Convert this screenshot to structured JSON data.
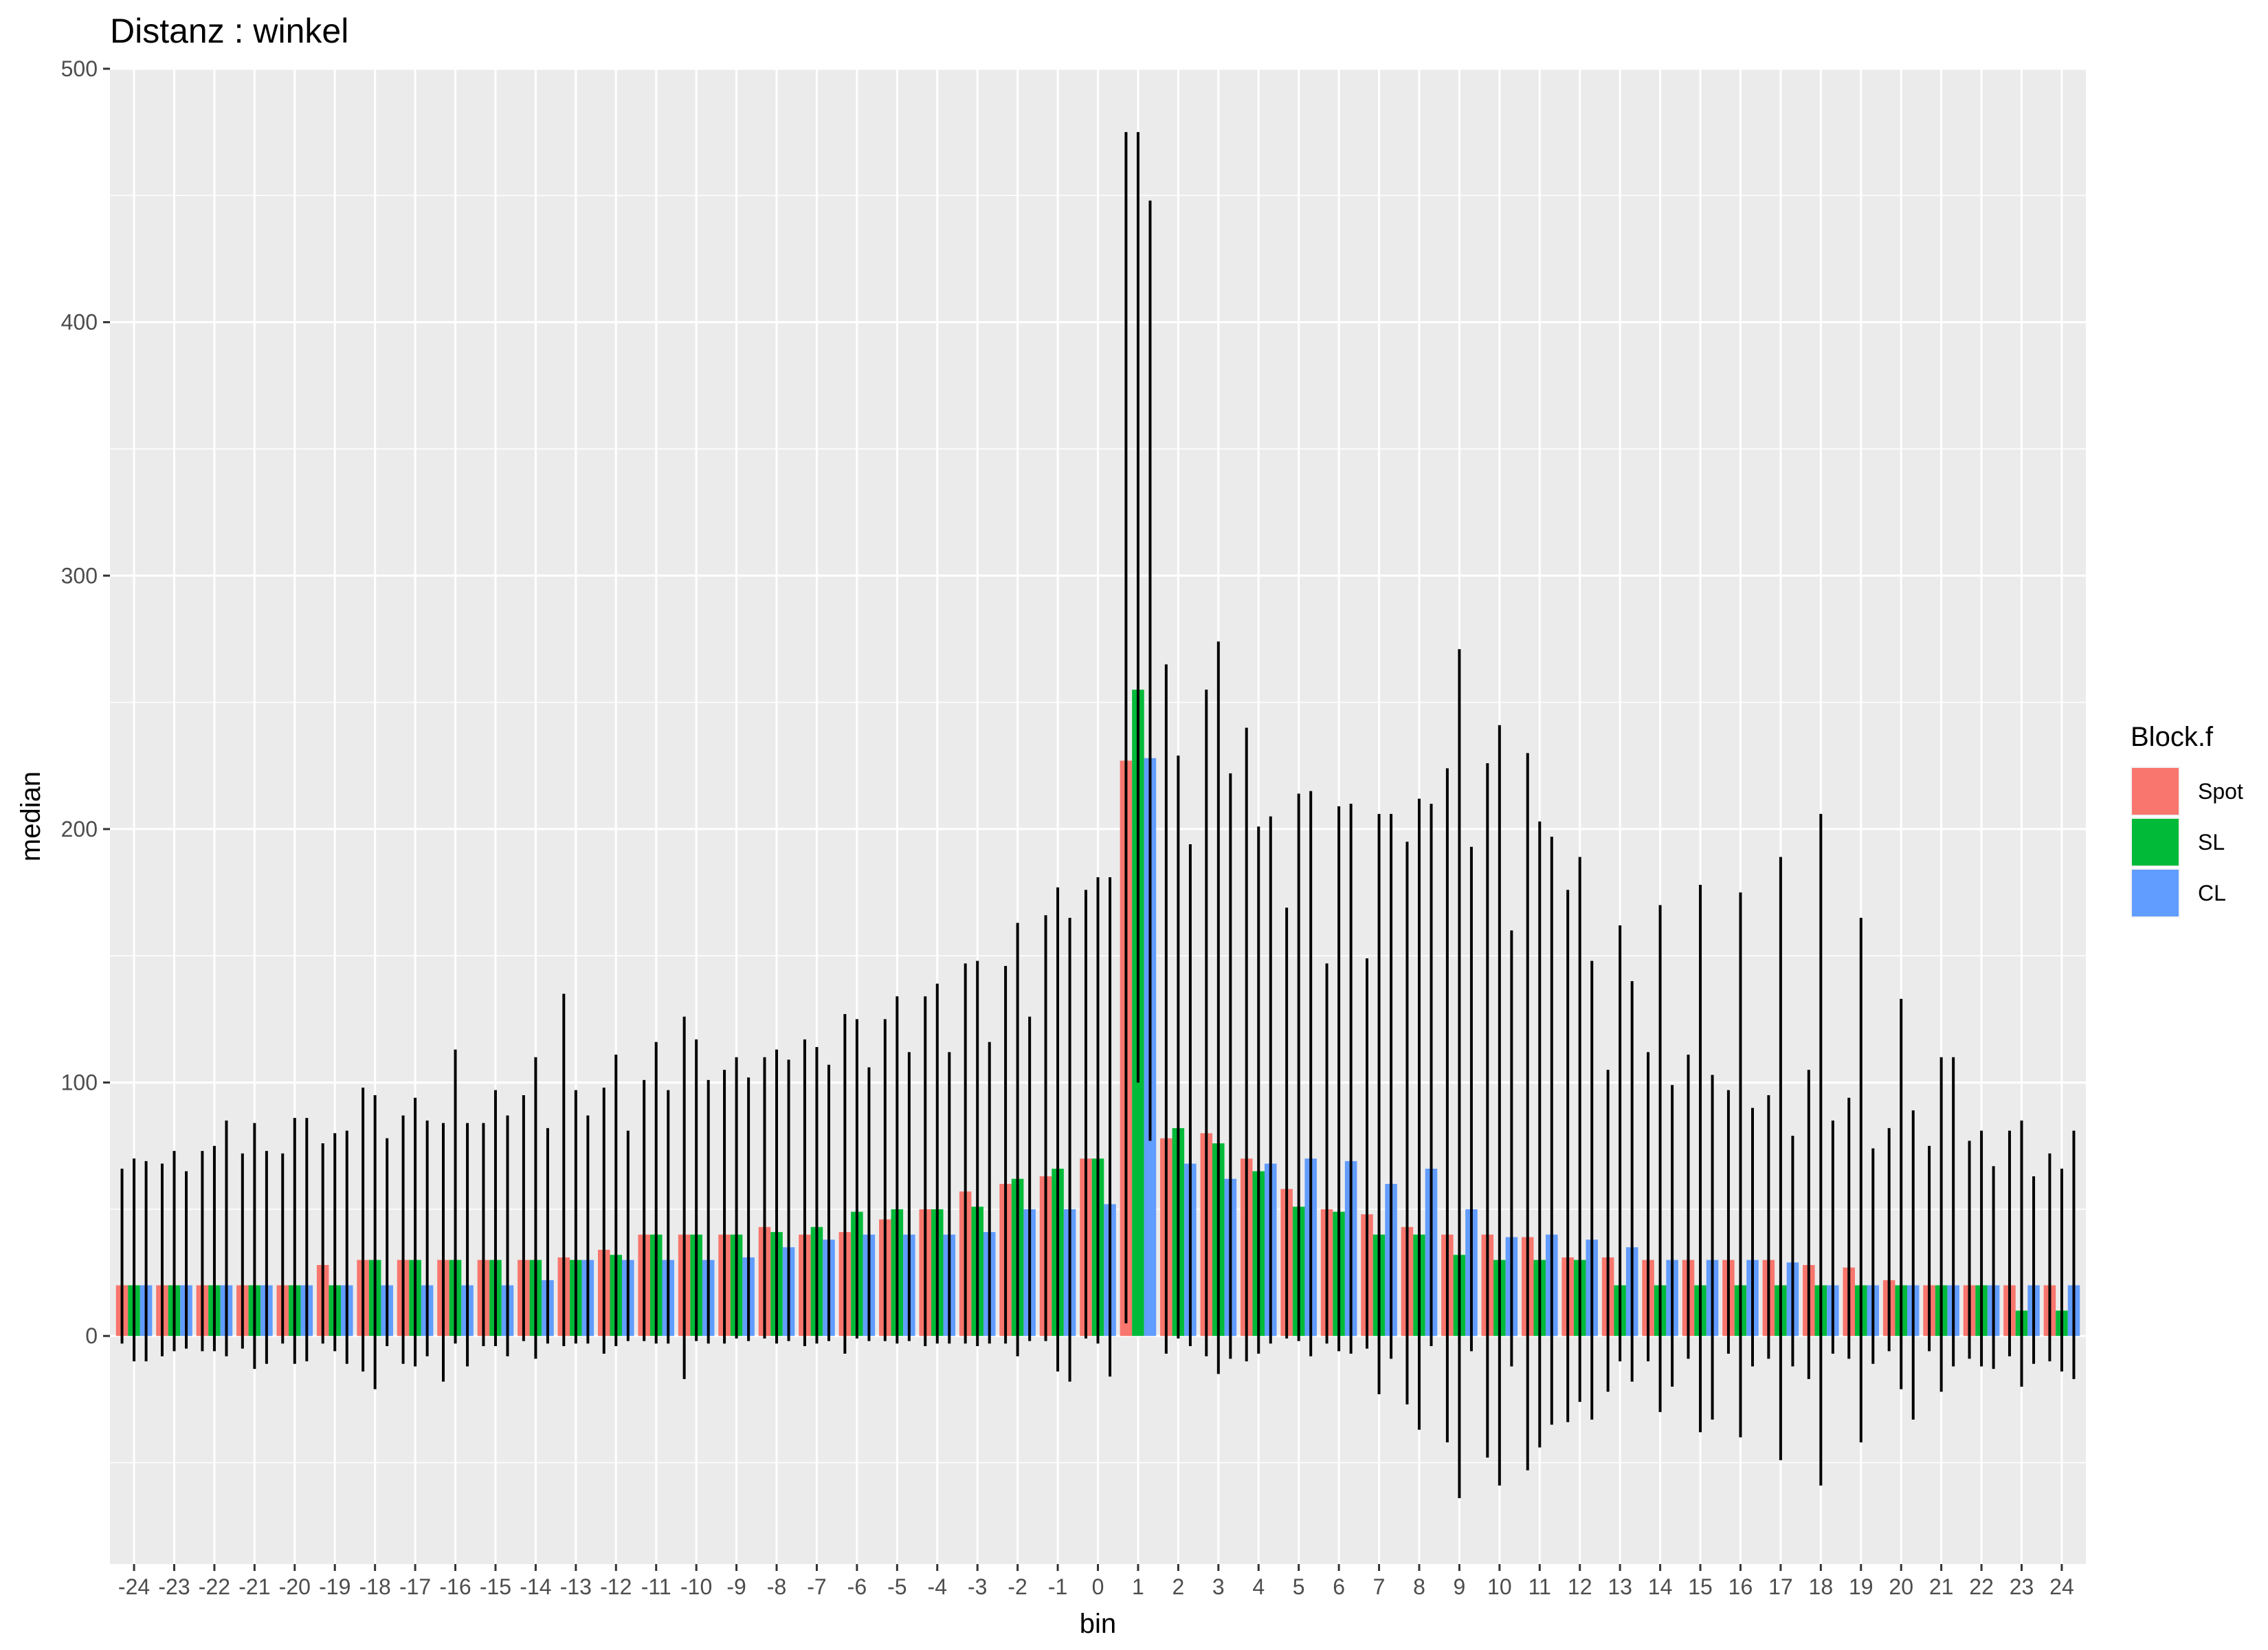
{
  "chart_data": {
    "type": "bar",
    "title": "Distanz : winkel",
    "xlabel": "bin",
    "ylabel": "median",
    "ylim": [
      -90,
      500
    ],
    "y_ticks": [
      0,
      100,
      200,
      300,
      400,
      500
    ],
    "grid": true,
    "legend": {
      "title": "Block.f",
      "position": "right"
    },
    "categories": [
      "-24",
      "-23",
      "-22",
      "-21",
      "-20",
      "-19",
      "-18",
      "-17",
      "-16",
      "-15",
      "-14",
      "-13",
      "-12",
      "-11",
      "-10",
      "-9",
      "-8",
      "-7",
      "-6",
      "-5",
      "-4",
      "-3",
      "-2",
      "-1",
      "0",
      "1",
      "2",
      "3",
      "4",
      "5",
      "6",
      "7",
      "8",
      "9",
      "10",
      "11",
      "12",
      "13",
      "14",
      "15",
      "16",
      "17",
      "18",
      "19",
      "20",
      "21",
      "22",
      "23",
      "24"
    ],
    "series": [
      {
        "name": "Spot",
        "color": "#F8766D",
        "values": [
          20,
          20,
          20,
          20,
          20,
          28,
          30,
          30,
          30,
          30,
          30,
          31,
          34,
          40,
          40,
          40,
          43,
          40,
          41,
          46,
          50,
          57,
          60,
          63,
          70,
          227,
          78,
          80,
          70,
          58,
          50,
          48,
          43,
          40,
          40,
          39,
          31,
          31,
          30,
          30,
          30,
          30,
          28,
          27,
          22,
          20,
          20,
          20,
          20
        ],
        "err_low": [
          -3,
          -8,
          -6,
          -5,
          -3,
          -3,
          -14,
          -11,
          -18,
          -4,
          -2,
          -4,
          -7,
          -2,
          -17,
          -3,
          -1,
          -4,
          -7,
          -2,
          -4,
          -3,
          -3,
          -2,
          -1,
          5,
          -7,
          -8,
          -10,
          -1,
          -3,
          -5,
          -27,
          -42,
          -48,
          -53,
          -34,
          -22,
          -10,
          -9,
          -7,
          -9,
          -17,
          -9,
          -6,
          -6,
          -9,
          -8,
          -10
        ],
        "err_high": [
          66,
          68,
          73,
          72,
          72,
          76,
          98,
          87,
          84,
          84,
          95,
          135,
          98,
          101,
          126,
          105,
          110,
          117,
          127,
          125,
          134,
          147,
          146,
          166,
          176,
          475,
          265,
          255,
          240,
          169,
          147,
          149,
          195,
          224,
          226,
          230,
          176,
          105,
          112,
          111,
          97,
          95,
          105,
          94,
          82,
          75,
          77,
          81,
          72
        ]
      },
      {
        "name": "SL",
        "color": "#00BA38",
        "values": [
          20,
          20,
          20,
          20,
          20,
          20,
          30,
          30,
          30,
          30,
          30,
          30,
          32,
          40,
          40,
          40,
          41,
          43,
          49,
          50,
          50,
          51,
          62,
          66,
          70,
          255,
          82,
          76,
          65,
          51,
          49,
          40,
          40,
          32,
          30,
          30,
          30,
          20,
          20,
          20,
          20,
          20,
          20,
          20,
          20,
          20,
          20,
          10,
          10
        ],
        "err_low": [
          -10,
          -6,
          -6,
          -13,
          -11,
          -6,
          -21,
          -12,
          -3,
          -4,
          -9,
          -3,
          -4,
          -3,
          -2,
          -1,
          -3,
          -3,
          -1,
          -3,
          -3,
          -4,
          -8,
          -14,
          -3,
          100,
          -1,
          -15,
          -7,
          -2,
          -6,
          -23,
          -37,
          -64,
          -59,
          -44,
          -26,
          -10,
          -30,
          -38,
          -40,
          -49,
          -59,
          -42,
          -21,
          -22,
          -12,
          -20,
          -14
        ],
        "err_high": [
          70,
          73,
          75,
          84,
          86,
          80,
          95,
          94,
          113,
          97,
          110,
          97,
          111,
          116,
          117,
          110,
          113,
          114,
          125,
          134,
          139,
          148,
          163,
          177,
          181,
          475,
          229,
          274,
          201,
          214,
          209,
          206,
          212,
          271,
          241,
          203,
          189,
          162,
          170,
          178,
          175,
          189,
          206,
          165,
          133,
          110,
          81,
          85,
          66
        ]
      },
      {
        "name": "CL",
        "color": "#619CFF",
        "values": [
          20,
          20,
          20,
          20,
          20,
          20,
          20,
          20,
          20,
          20,
          22,
          30,
          30,
          30,
          30,
          31,
          35,
          38,
          40,
          40,
          40,
          41,
          50,
          50,
          52,
          228,
          68,
          62,
          68,
          70,
          69,
          60,
          66,
          50,
          39,
          40,
          38,
          35,
          30,
          30,
          30,
          29,
          20,
          20,
          20,
          20,
          20,
          20,
          20
        ],
        "err_low": [
          -10,
          -5,
          -8,
          -11,
          -10,
          -11,
          -4,
          -8,
          -12,
          -8,
          -3,
          -3,
          -2,
          -3,
          -3,
          -2,
          -2,
          -2,
          -2,
          -2,
          -3,
          -3,
          -2,
          -18,
          -16,
          77,
          -4,
          -9,
          -3,
          -8,
          -7,
          -9,
          -4,
          -6,
          -12,
          -35,
          -33,
          -18,
          -20,
          -33,
          -12,
          -12,
          -7,
          -11,
          -33,
          -12,
          -13,
          -11,
          -17
        ],
        "err_high": [
          69,
          65,
          85,
          73,
          86,
          81,
          78,
          85,
          84,
          87,
          82,
          87,
          81,
          97,
          101,
          102,
          109,
          107,
          106,
          112,
          112,
          116,
          126,
          165,
          181,
          448,
          194,
          222,
          205,
          215,
          210,
          206,
          210,
          193,
          160,
          197,
          148,
          140,
          99,
          103,
          90,
          79,
          85,
          74,
          89,
          110,
          67,
          63,
          81
        ]
      }
    ]
  }
}
